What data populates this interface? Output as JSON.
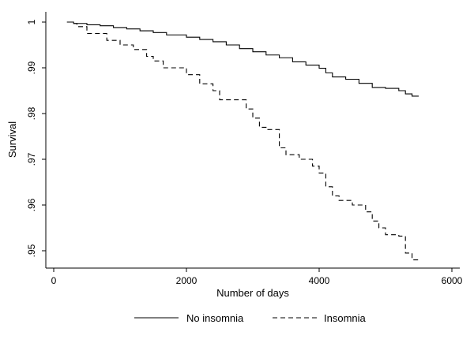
{
  "chart_data": {
    "type": "line",
    "title": "",
    "xlabel": "Number of days",
    "ylabel": "Survival",
    "xlim": [
      0,
      6000
    ],
    "ylim": [
      0.9475,
      1.0005
    ],
    "xticks": [
      0,
      2000,
      4000,
      6000
    ],
    "xtick_labels": [
      "0",
      "2000",
      "4000",
      "6000"
    ],
    "yticks": [
      1.0,
      0.99,
      0.98,
      0.97,
      0.96,
      0.95
    ],
    "ytick_labels": [
      "1",
      ".99",
      ".98",
      ".97",
      ".96",
      ".95"
    ],
    "grid": false,
    "legend_position": "bottom",
    "series": [
      {
        "name": "No insomnia",
        "style": "solid",
        "step": true,
        "x": [
          200,
          300,
          500,
          700,
          900,
          1100,
          1300,
          1500,
          1700,
          2000,
          2200,
          2400,
          2600,
          2800,
          3000,
          3200,
          3400,
          3600,
          3800,
          4000,
          4100,
          4200,
          4400,
          4600,
          4800,
          5000,
          5200,
          5300,
          5400,
          5500
        ],
        "y": [
          1.0,
          0.9997,
          0.9994,
          0.9992,
          0.9988,
          0.9985,
          0.9981,
          0.9977,
          0.9972,
          0.9967,
          0.9962,
          0.9957,
          0.995,
          0.9942,
          0.9935,
          0.9928,
          0.9922,
          0.9913,
          0.9906,
          0.9899,
          0.9889,
          0.988,
          0.9875,
          0.9866,
          0.9857,
          0.9855,
          0.985,
          0.9843,
          0.9838,
          0.9838
        ]
      },
      {
        "name": "Insomnia",
        "style": "dashed",
        "step": true,
        "x": [
          200,
          300,
          350,
          500,
          800,
          1000,
          1200,
          1400,
          1500,
          1650,
          2000,
          2200,
          2400,
          2500,
          2900,
          3000,
          3100,
          3200,
          3400,
          3500,
          3700,
          3900,
          4000,
          4100,
          4200,
          4300,
          4500,
          4700,
          4800,
          4900,
          5000,
          5200,
          5300,
          5400,
          5500
        ],
        "y": [
          1.0,
          0.9997,
          0.999,
          0.9975,
          0.996,
          0.995,
          0.994,
          0.9925,
          0.9915,
          0.99,
          0.9885,
          0.9865,
          0.985,
          0.983,
          0.981,
          0.979,
          0.977,
          0.9765,
          0.9725,
          0.971,
          0.97,
          0.9685,
          0.967,
          0.964,
          0.962,
          0.961,
          0.96,
          0.9585,
          0.9565,
          0.955,
          0.9535,
          0.9532,
          0.9495,
          0.948,
          0.948
        ]
      }
    ]
  }
}
